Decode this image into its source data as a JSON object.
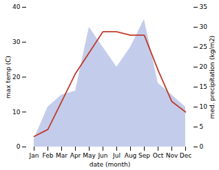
{
  "chart_data": {
    "type": "line",
    "categories": [
      "Jan",
      "Feb",
      "Mar",
      "Apr",
      "May",
      "Jun",
      "Jul",
      "Aug",
      "Sep",
      "Oct",
      "Nov",
      "Dec"
    ],
    "xlabel": "date (month)",
    "ylabel": "max temp (C)",
    "y2label": "med. precipitation (kg/m2)",
    "ylim": [
      0,
      40
    ],
    "yticks": [
      0,
      10,
      20,
      30,
      40
    ],
    "y2lim": [
      0,
      35
    ],
    "y2ticks": [
      0,
      5,
      10,
      15,
      20,
      25,
      30,
      35
    ],
    "series": [
      {
        "type": "area",
        "axis": "y2",
        "color": "#b8c4e8",
        "values": [
          2,
          10,
          13,
          14,
          30,
          25,
          20,
          25,
          32,
          16,
          13,
          10
        ]
      },
      {
        "type": "line",
        "color": "#c0392b",
        "values": [
          3,
          5,
          13,
          21,
          27,
          33,
          33,
          32,
          32,
          22,
          13,
          10
        ]
      }
    ]
  }
}
